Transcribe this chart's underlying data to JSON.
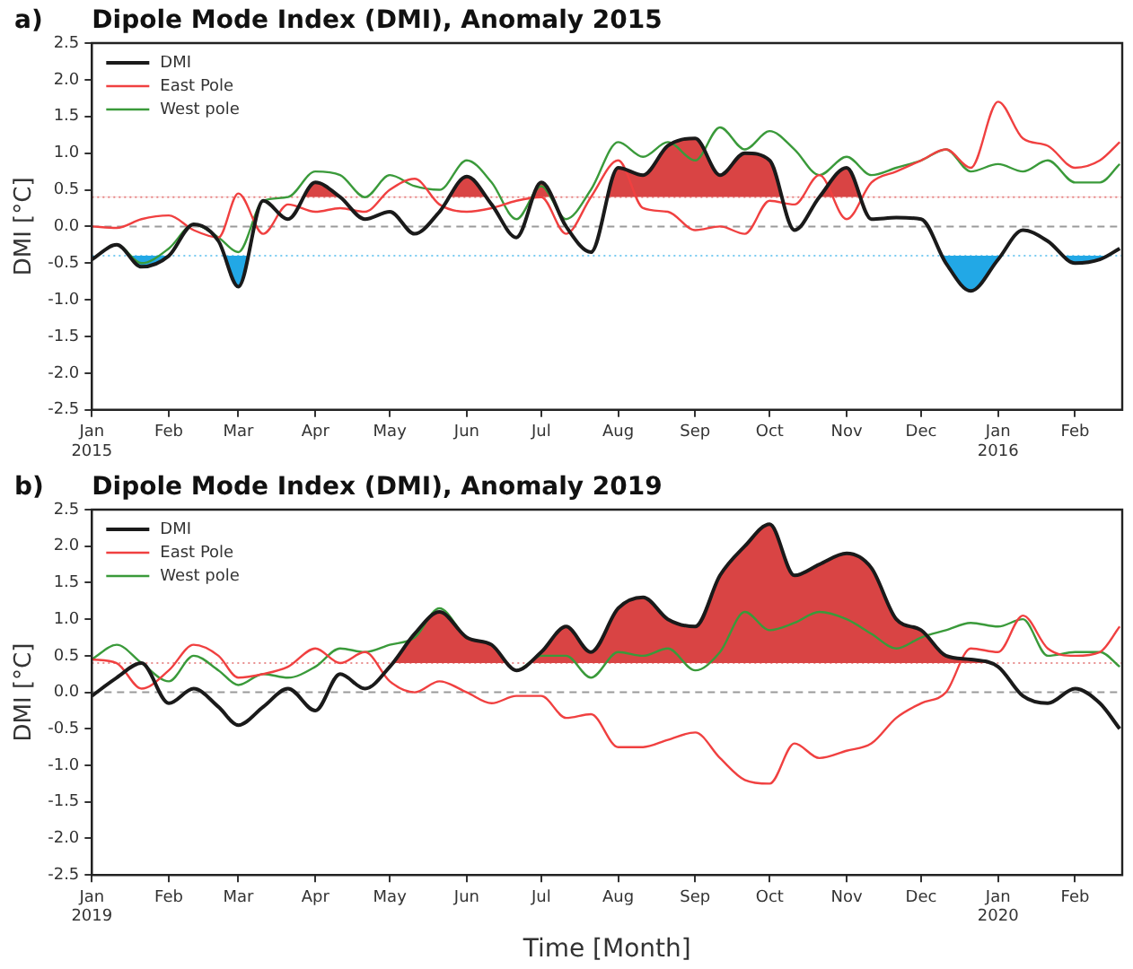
{
  "chart_data": [
    {
      "type": "line",
      "title": "Dipole Mode Index (DMI), Anomaly 2015",
      "annotations": [
        "a)"
      ],
      "ylabel": "DMI [°C]",
      "x": [
        "2015-01-01",
        "2015-01-11",
        "2015-01-21",
        "2015-02-01",
        "2015-02-11",
        "2015-02-21",
        "2015-03-01",
        "2015-03-11",
        "2015-03-21",
        "2015-04-01",
        "2015-04-11",
        "2015-04-21",
        "2015-05-01",
        "2015-05-11",
        "2015-05-21",
        "2015-06-01",
        "2015-06-11",
        "2015-06-21",
        "2015-07-01",
        "2015-07-11",
        "2015-07-21",
        "2015-08-01",
        "2015-08-11",
        "2015-08-21",
        "2015-09-01",
        "2015-09-11",
        "2015-09-21",
        "2015-10-01",
        "2015-10-11",
        "2015-10-21",
        "2015-11-01",
        "2015-11-11",
        "2015-11-21",
        "2015-12-01",
        "2015-12-11",
        "2015-12-21",
        "2016-01-01",
        "2016-01-11",
        "2016-01-21",
        "2016-02-01",
        "2016-02-11",
        "2016-02-19"
      ],
      "series": [
        {
          "name": "DMI",
          "color": "#1a1a1a",
          "values": [
            -0.45,
            -0.25,
            -0.55,
            -0.4,
            0.03,
            -0.2,
            -0.82,
            0.35,
            0.1,
            0.6,
            0.4,
            0.1,
            0.2,
            -0.1,
            0.2,
            0.68,
            0.3,
            -0.15,
            0.6,
            0.0,
            -0.35,
            0.8,
            0.7,
            1.1,
            1.2,
            0.7,
            1.0,
            0.9,
            -0.05,
            0.4,
            0.8,
            0.1,
            0.12,
            0.1,
            -0.5,
            -0.88,
            -0.45,
            -0.05,
            -0.2,
            -0.5,
            -0.45,
            -0.3
          ]
        },
        {
          "name": "East Pole",
          "color": "#f04040",
          "values": [
            0.0,
            -0.02,
            0.1,
            0.15,
            -0.05,
            -0.15,
            0.45,
            -0.1,
            0.3,
            0.2,
            0.25,
            0.2,
            0.5,
            0.65,
            0.3,
            0.2,
            0.25,
            0.35,
            0.4,
            -0.1,
            0.4,
            0.9,
            0.25,
            0.2,
            -0.05,
            0.0,
            -0.1,
            0.35,
            0.3,
            0.7,
            0.1,
            0.6,
            0.75,
            0.9,
            1.05,
            0.8,
            1.7,
            1.2,
            1.1,
            0.8,
            0.9,
            1.15
          ]
        },
        {
          "name": "West pole",
          "color": "#3a9a3a",
          "values": [
            -0.45,
            -0.25,
            -0.5,
            -0.3,
            0.03,
            -0.15,
            -0.35,
            0.35,
            0.4,
            0.75,
            0.7,
            0.4,
            0.7,
            0.55,
            0.5,
            0.9,
            0.6,
            0.1,
            0.55,
            0.1,
            0.5,
            1.15,
            0.95,
            1.15,
            0.9,
            1.35,
            1.05,
            1.3,
            1.05,
            0.7,
            0.95,
            0.7,
            0.8,
            0.9,
            1.05,
            0.75,
            0.85,
            0.75,
            0.9,
            0.6,
            0.6,
            0.85
          ]
        }
      ],
      "xlim": [
        "2015-01-01",
        "2016-02-20"
      ],
      "xticks": [
        {
          "value": "2015-01-01",
          "label": "Jan\n2015"
        },
        {
          "value": "2015-02-01",
          "label": "Feb"
        },
        {
          "value": "2015-03-01",
          "label": "Mar"
        },
        {
          "value": "2015-04-01",
          "label": "Apr"
        },
        {
          "value": "2015-05-01",
          "label": "May"
        },
        {
          "value": "2015-06-01",
          "label": "Jun"
        },
        {
          "value": "2015-07-01",
          "label": "Jul"
        },
        {
          "value": "2015-08-01",
          "label": "Aug"
        },
        {
          "value": "2015-09-01",
          "label": "Sep"
        },
        {
          "value": "2015-10-01",
          "label": "Oct"
        },
        {
          "value": "2015-11-01",
          "label": "Nov"
        },
        {
          "value": "2015-12-01",
          "label": "Dec"
        },
        {
          "value": "2016-01-01",
          "label": "Jan\n2016"
        },
        {
          "value": "2016-02-01",
          "label": "Feb"
        }
      ],
      "ylim": [
        -2.5,
        2.5
      ],
      "yticks": [
        {
          "value": -2.5,
          "label": "-2.5"
        },
        {
          "value": -2,
          "label": "-2.0"
        },
        {
          "value": -1.5,
          "label": "-1.5"
        },
        {
          "value": -1,
          "label": "-1.0"
        },
        {
          "value": -0.5,
          "label": "-0.5"
        },
        {
          "value": 0,
          "label": "0.0"
        },
        {
          "value": 0.5,
          "label": "0.5"
        },
        {
          "value": 1,
          "label": "1.0"
        },
        {
          "value": 1.5,
          "label": "1.5"
        },
        {
          "value": 2,
          "label": "2.0"
        },
        {
          "value": 2.5,
          "label": "2.5"
        }
      ],
      "ref_lines": [
        {
          "axis": "y",
          "value": 0,
          "color": "#9a9a9a",
          "line_style": "dashed"
        },
        {
          "axis": "y",
          "value": 0.4,
          "color": "#d94444",
          "line_style": "dotted"
        },
        {
          "axis": "y",
          "value": -0.4,
          "color": "#22a8e6",
          "line_style": "dotted"
        }
      ],
      "legend": "top left",
      "marker": "none",
      "grid": false
    },
    {
      "type": "line",
      "title": "Dipole Mode Index (DMI), Anomaly 2019",
      "annotations": [
        "b)"
      ],
      "ylabel": "DMI [°C]",
      "xlabel": "Time [Month]",
      "x": [
        "2019-01-01",
        "2019-01-11",
        "2019-01-21",
        "2019-02-01",
        "2019-02-11",
        "2019-02-21",
        "2019-03-01",
        "2019-03-11",
        "2019-03-21",
        "2019-04-01",
        "2019-04-11",
        "2019-04-21",
        "2019-05-01",
        "2019-05-11",
        "2019-05-21",
        "2019-06-01",
        "2019-06-11",
        "2019-06-21",
        "2019-07-01",
        "2019-07-11",
        "2019-07-21",
        "2019-08-01",
        "2019-08-11",
        "2019-08-21",
        "2019-09-01",
        "2019-09-11",
        "2019-09-21",
        "2019-10-01",
        "2019-10-11",
        "2019-10-21",
        "2019-11-01",
        "2019-11-11",
        "2019-11-21",
        "2019-12-01",
        "2019-12-11",
        "2019-12-21",
        "2020-01-01",
        "2020-01-11",
        "2020-01-21",
        "2020-02-01",
        "2020-02-11",
        "2020-02-19"
      ],
      "series": [
        {
          "name": "DMI",
          "color": "#1a1a1a",
          "values": [
            -0.05,
            0.2,
            0.4,
            -0.15,
            0.05,
            -0.2,
            -0.45,
            -0.2,
            0.05,
            -0.25,
            0.25,
            0.05,
            0.35,
            0.8,
            1.1,
            0.75,
            0.65,
            0.3,
            0.55,
            0.9,
            0.55,
            1.15,
            1.3,
            1.0,
            0.9,
            1.6,
            2.0,
            2.3,
            1.6,
            1.75,
            1.9,
            1.7,
            1.0,
            0.85,
            0.5,
            0.45,
            0.35,
            -0.05,
            -0.15,
            0.05,
            -0.15,
            -0.5
          ]
        },
        {
          "name": "East Pole",
          "color": "#f04040",
          "values": [
            0.45,
            0.4,
            0.05,
            0.3,
            0.65,
            0.5,
            0.2,
            0.25,
            0.35,
            0.6,
            0.4,
            0.55,
            0.15,
            0.0,
            0.15,
            0.0,
            -0.15,
            -0.05,
            -0.05,
            -0.35,
            -0.3,
            -0.75,
            -0.75,
            -0.65,
            -0.55,
            -0.9,
            -1.2,
            -1.25,
            -0.7,
            -0.9,
            -0.8,
            -0.7,
            -0.35,
            -0.15,
            0.0,
            0.6,
            0.55,
            1.05,
            0.6,
            0.5,
            0.55,
            0.9
          ]
        },
        {
          "name": "West pole",
          "color": "#3a9a3a",
          "values": [
            0.45,
            0.65,
            0.4,
            0.15,
            0.5,
            0.3,
            0.1,
            0.25,
            0.2,
            0.35,
            0.6,
            0.55,
            0.65,
            0.75,
            1.15,
            0.75,
            0.65,
            0.3,
            0.5,
            0.5,
            0.2,
            0.55,
            0.5,
            0.6,
            0.3,
            0.55,
            1.1,
            0.85,
            0.95,
            1.1,
            1.0,
            0.8,
            0.6,
            0.75,
            0.85,
            0.95,
            0.9,
            1.0,
            0.5,
            0.55,
            0.55,
            0.35
          ]
        }
      ],
      "xlim": [
        "2019-01-01",
        "2020-02-20"
      ],
      "xticks": [
        {
          "value": "2019-01-01",
          "label": "Jan\n2019"
        },
        {
          "value": "2019-02-01",
          "label": "Feb"
        },
        {
          "value": "2019-03-01",
          "label": "Mar"
        },
        {
          "value": "2019-04-01",
          "label": "Apr"
        },
        {
          "value": "2019-05-01",
          "label": "May"
        },
        {
          "value": "2019-06-01",
          "label": "Jun"
        },
        {
          "value": "2019-07-01",
          "label": "Jul"
        },
        {
          "value": "2019-08-01",
          "label": "Aug"
        },
        {
          "value": "2019-09-01",
          "label": "Sep"
        },
        {
          "value": "2019-10-01",
          "label": "Oct"
        },
        {
          "value": "2019-11-01",
          "label": "Nov"
        },
        {
          "value": "2019-12-01",
          "label": "Dec"
        },
        {
          "value": "2020-01-01",
          "label": "Jan\n2020"
        },
        {
          "value": "2020-02-01",
          "label": "Feb"
        }
      ],
      "ylim": [
        -2.5,
        2.5
      ],
      "yticks": [
        {
          "value": -2.5,
          "label": "-2.5"
        },
        {
          "value": -2,
          "label": "-2.0"
        },
        {
          "value": -1.5,
          "label": "-1.5"
        },
        {
          "value": -1,
          "label": "-1.0"
        },
        {
          "value": -0.5,
          "label": "-0.5"
        },
        {
          "value": 0,
          "label": "0.0"
        },
        {
          "value": 0.5,
          "label": "0.5"
        },
        {
          "value": 1,
          "label": "1.0"
        },
        {
          "value": 1.5,
          "label": "1.5"
        },
        {
          "value": 2,
          "label": "2.0"
        },
        {
          "value": 2.5,
          "label": "2.5"
        }
      ],
      "ref_lines": [
        {
          "axis": "y",
          "value": 0,
          "color": "#9a9a9a",
          "line_style": "dashed"
        },
        {
          "axis": "y",
          "value": 0.4,
          "color": "#d94444",
          "line_style": "dotted"
        }
      ],
      "legend": "top left",
      "marker": "none",
      "grid": false
    }
  ]
}
